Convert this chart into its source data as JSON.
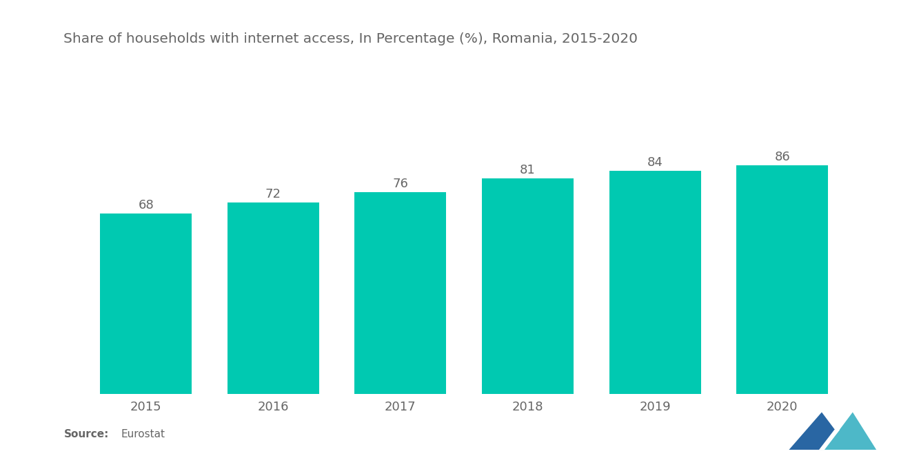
{
  "title": "Share of households with internet access, In Percentage (%), Romania, 2015-2020",
  "years": [
    "2015",
    "2016",
    "2017",
    "2018",
    "2019",
    "2020"
  ],
  "values": [
    68,
    72,
    76,
    81,
    84,
    86
  ],
  "bar_color": "#00C9B1",
  "background_color": "#ffffff",
  "text_color": "#666666",
  "title_fontsize": 14.5,
  "tick_fontsize": 13,
  "value_fontsize": 13,
  "source_bold": "Source:",
  "source_text": "Eurostat",
  "ylim": [
    0,
    100
  ],
  "bar_width": 0.72,
  "logo_left_color": "#2966A3",
  "logo_right_color": "#4DB8C8"
}
